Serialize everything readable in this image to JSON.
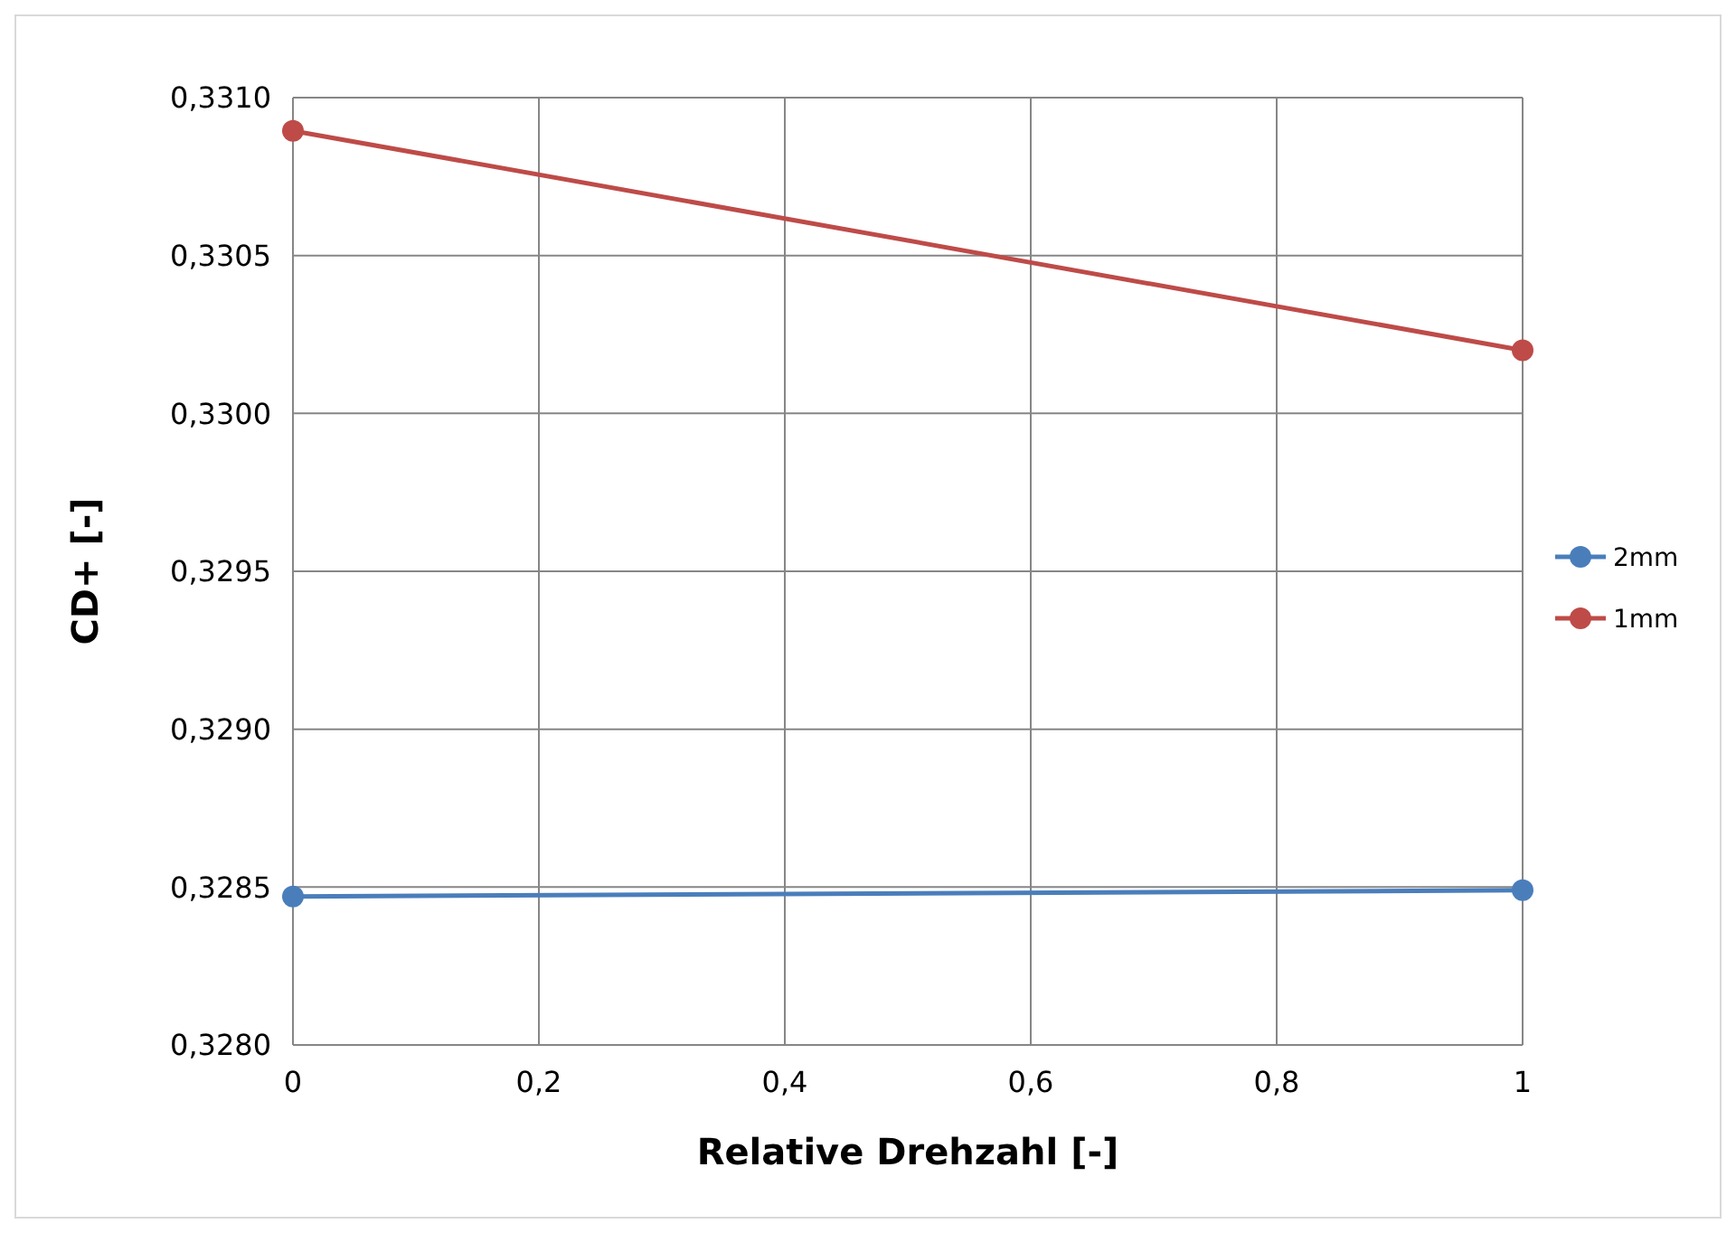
{
  "chart_data": {
    "type": "line",
    "xlabel": "Relative Drehzahl [-]",
    "ylabel": "CD+ [-]",
    "x": [
      0,
      1
    ],
    "series": [
      {
        "name": "2mm",
        "color": "#4a7ebb",
        "values": [
          0.32847,
          0.32849
        ]
      },
      {
        "name": "1mm",
        "color": "#be4b48",
        "values": [
          0.330895,
          0.3302
        ]
      }
    ],
    "xlim": [
      0,
      1
    ],
    "xticks": [
      0,
      {
        "value": 0.2,
        "label": "0,2"
      },
      {
        "value": 0.4,
        "label": "0,4"
      },
      {
        "value": 0.6,
        "label": "0,6"
      },
      {
        "value": 0.8,
        "label": "0,8"
      },
      1
    ],
    "ylim": [
      0.328,
      0.331
    ],
    "yticks": [
      {
        "value": 0.328,
        "label": "0,3280"
      },
      {
        "value": 0.3285,
        "label": "0,3285"
      },
      {
        "value": 0.329,
        "label": "0,3290"
      },
      {
        "value": 0.3295,
        "label": "0,3295"
      },
      {
        "value": 0.33,
        "label": "0,3300"
      },
      {
        "value": 0.3305,
        "label": "0,3305"
      },
      {
        "value": 0.331,
        "label": "0,3310"
      }
    ],
    "grid": true,
    "legend": "right",
    "marker": "circle",
    "line_style": "solid"
  }
}
